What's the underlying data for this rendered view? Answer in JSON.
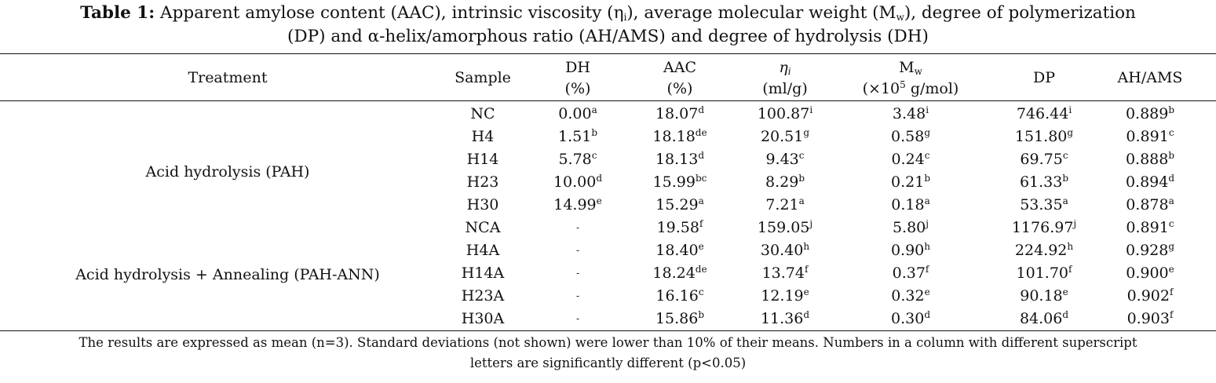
{
  "caption": {
    "label": "Table 1:",
    "line1_text": " Apparent amylose content (AAC), intrinsic viscosity (η",
    "line1_sub1": "i",
    "line1_mid": "), average molecular weight (M",
    "line1_sub2": "w",
    "line1_end": "), degree of polymerization",
    "line2": "(DP) and α-helix/amorphous ratio (AH/AMS) and degree of hydrolysis (DH)"
  },
  "headers": {
    "treatment": "Treatment",
    "sample": "Sample",
    "dh": "DH",
    "dh_unit": "(%)",
    "aac": "AAC",
    "aac_unit": "(%)",
    "eta": "η",
    "eta_sub": "i",
    "eta_unit": "(ml/g)",
    "mw": "M",
    "mw_sub": "w",
    "mw_unit_a": "(×10",
    "mw_unit_sup": "5",
    "mw_unit_b": " g/mol)",
    "dp": "DP",
    "ahams": "AH/AMS"
  },
  "groups": [
    {
      "name": "Acid hydrolysis (PAH)"
    },
    {
      "name": "Acid hydrolysis + Annealing (PAH-ANN)"
    }
  ],
  "rows": [
    {
      "sample": "NC",
      "dh": [
        "0.00",
        "a"
      ],
      "aac": [
        "18.07",
        "d"
      ],
      "eta": [
        "100.87",
        "i"
      ],
      "mw": [
        "3.48",
        "i"
      ],
      "dp": [
        "746.44",
        "i"
      ],
      "ahams": [
        "0.889",
        "b"
      ]
    },
    {
      "sample": "H4",
      "dh": [
        "1.51",
        "b"
      ],
      "aac": [
        "18.18",
        "de"
      ],
      "eta": [
        "20.51",
        "g"
      ],
      "mw": [
        "0.58",
        "g"
      ],
      "dp": [
        "151.80",
        "g"
      ],
      "ahams": [
        "0.891",
        "c"
      ]
    },
    {
      "sample": "H14",
      "dh": [
        "5.78",
        "c"
      ],
      "aac": [
        "18.13",
        "d"
      ],
      "eta": [
        "9.43",
        "c"
      ],
      "mw": [
        "0.24",
        "c"
      ],
      "dp": [
        "69.75",
        "c"
      ],
      "ahams": [
        "0.888",
        "b"
      ]
    },
    {
      "sample": "H23",
      "dh": [
        "10.00",
        "d"
      ],
      "aac": [
        "15.99",
        "bc"
      ],
      "eta": [
        "8.29",
        "b"
      ],
      "mw": [
        "0.21",
        "b"
      ],
      "dp": [
        "61.33",
        "b"
      ],
      "ahams": [
        "0.894",
        "d"
      ]
    },
    {
      "sample": "H30",
      "dh": [
        "14.99",
        "e"
      ],
      "aac": [
        "15.29",
        "a"
      ],
      "eta": [
        "7.21",
        "a"
      ],
      "mw": [
        "0.18",
        "a"
      ],
      "dp": [
        "53.35",
        "a"
      ],
      "ahams": [
        "0.878",
        "a"
      ]
    },
    {
      "sample": "NCA",
      "dh": [
        "-",
        ""
      ],
      "aac": [
        "19.58",
        "f"
      ],
      "eta": [
        "159.05",
        "j"
      ],
      "mw": [
        "5.80",
        "j"
      ],
      "dp": [
        "1176.97",
        "j"
      ],
      "ahams": [
        "0.891",
        "c"
      ]
    },
    {
      "sample": "H4A",
      "dh": [
        "-",
        ""
      ],
      "aac": [
        "18.40",
        "e"
      ],
      "eta": [
        "30.40",
        "h"
      ],
      "mw": [
        "0.90",
        "h"
      ],
      "dp": [
        "224.92",
        "h"
      ],
      "ahams": [
        "0.928",
        "g"
      ]
    },
    {
      "sample": "H14A",
      "dh": [
        "-",
        ""
      ],
      "aac": [
        "18.24",
        "de"
      ],
      "eta": [
        "13.74",
        "f"
      ],
      "mw": [
        "0.37",
        "f"
      ],
      "dp": [
        "101.70",
        "f"
      ],
      "ahams": [
        "0.900",
        "e"
      ]
    },
    {
      "sample": "H23A",
      "dh": [
        "-",
        ""
      ],
      "aac": [
        "16.16",
        "c"
      ],
      "eta": [
        "12.19",
        "e"
      ],
      "mw": [
        "0.32",
        "e"
      ],
      "dp": [
        "90.18",
        "e"
      ],
      "ahams": [
        "0.902",
        "f"
      ]
    },
    {
      "sample": "H30A",
      "dh": [
        "-",
        ""
      ],
      "aac": [
        "15.86",
        "b"
      ],
      "eta": [
        "11.36",
        "d"
      ],
      "mw": [
        "0.30",
        "d"
      ],
      "dp": [
        "84.06",
        "d"
      ],
      "ahams": [
        "0.903",
        "f"
      ]
    }
  ],
  "footnote": {
    "line1": "The results are expressed as mean (n=3). Standard deviations (not shown) were lower than 10% of their means. Numbers in a column with different superscript",
    "line2": "letters are significantly different (p<0.05)"
  }
}
